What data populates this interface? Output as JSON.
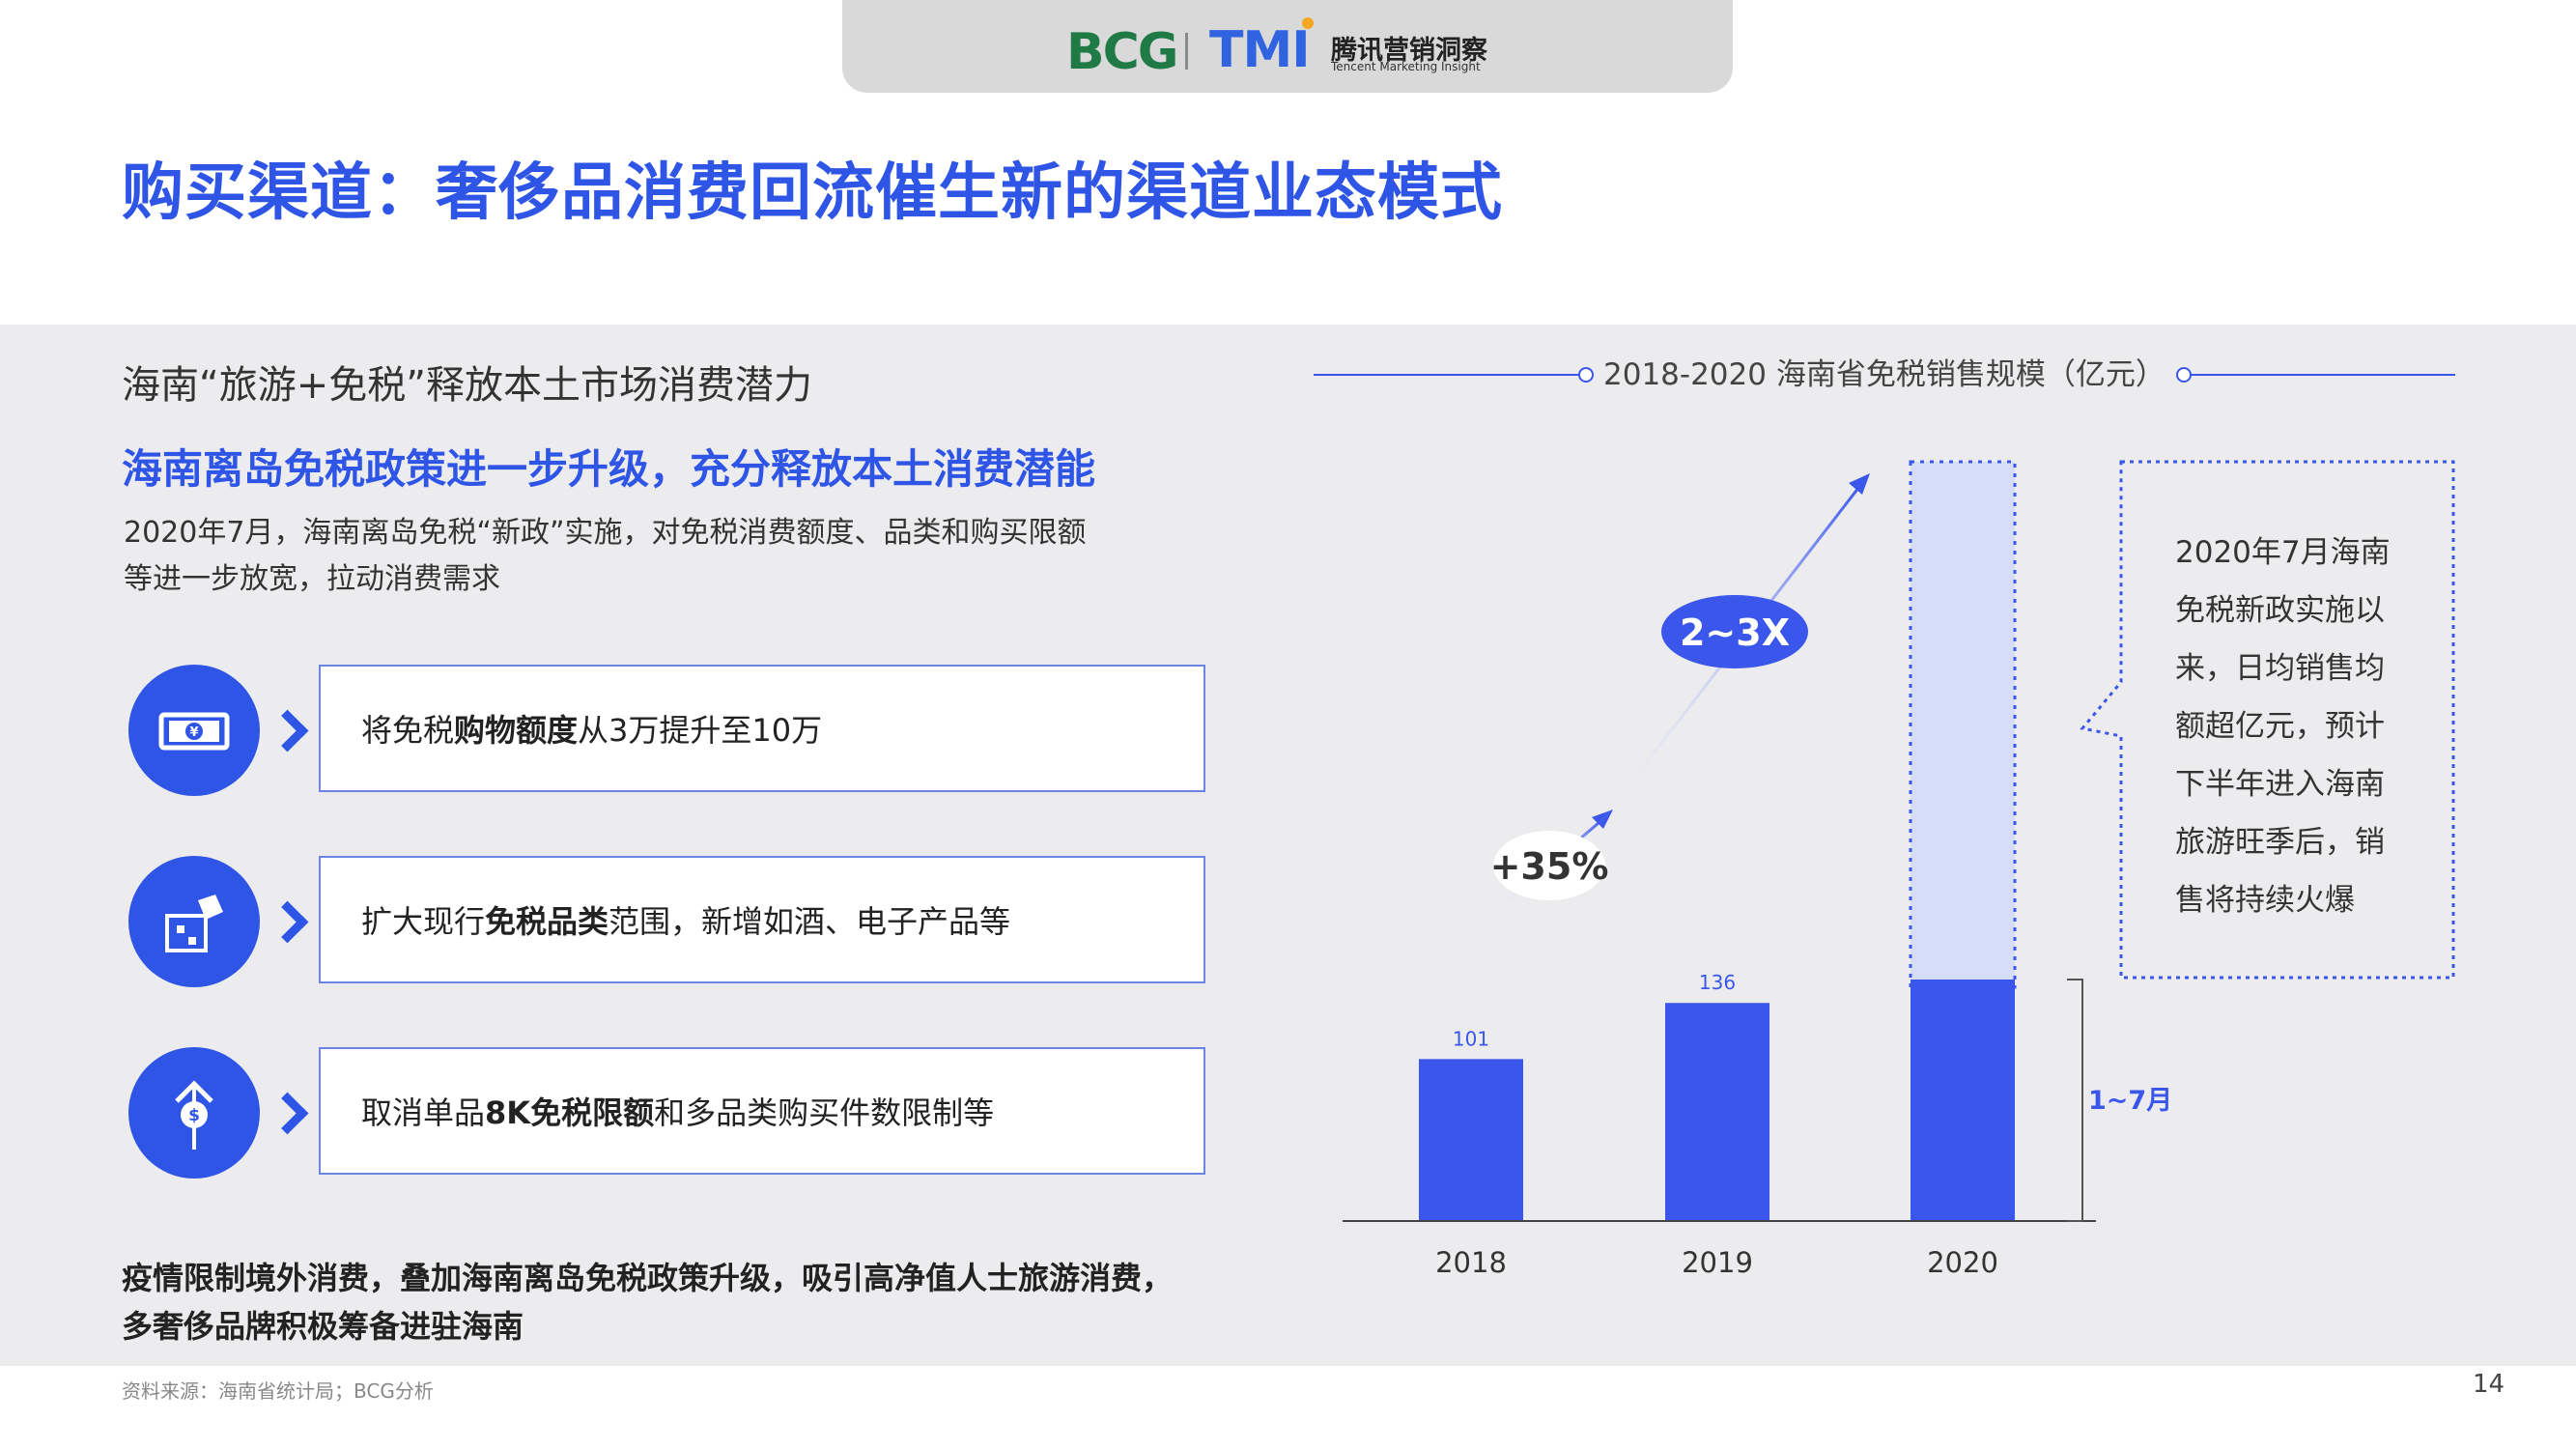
{
  "header": {
    "bcg_logo": "BCG",
    "tmi_logo": "TMI",
    "tmi_cn": "腾讯营销洞察",
    "tmi_en": "Tencent Marketing Insight"
  },
  "title": "购买渠道：奢侈品消费回流催生新的渠道业态模式",
  "left": {
    "section_heading": "海南“旅游+免税”释放本土市场消费潜力",
    "policy_title": "海南离岛免税政策进一步升级，充分释放本土消费潜能",
    "policy_desc_1": "2020年7月，海南离岛免税“新政”实施，对免税消费额度、品类和购买限额",
    "policy_desc_2": "等进一步放宽，拉动消费需求",
    "items": [
      {
        "icon": "money-icon",
        "pre": "将免税",
        "bold": "购物额度",
        "post": "从3万提升至10万"
      },
      {
        "icon": "puzzle-icon",
        "pre": "扩大现行",
        "bold": "免税品类",
        "post": "范围，新增如酒、电子产品等"
      },
      {
        "icon": "dollar-up-icon",
        "pre": "取消单品",
        "bold": "8K免税限额",
        "post": "和多品类购买件数限制等"
      }
    ],
    "conclusion_1": "疫情限制境外消费，叠加海南离岛免税政策升级，吸引高净值人士旅游消费，",
    "conclusion_2": "多奢侈品牌积极筹备进驻海南"
  },
  "chart_data": {
    "type": "bar",
    "title": "2018-2020 海南省免税销售规模（亿元）",
    "categories": [
      "2018",
      "2019",
      "2020"
    ],
    "values": [
      101,
      136,
      null
    ],
    "value_labels": [
      "101",
      "136",
      ""
    ],
    "bracket_label": "1~7月",
    "growth_labels": [
      "+35%",
      "2~3X"
    ],
    "callout": [
      "2020年7月海南",
      "免税新政实施以",
      "来，日均销售均",
      "额超亿元，预计",
      "下半年进入海南",
      "旅游旺季后，销",
      "售将持续火爆"
    ],
    "colors": {
      "bar": "#3a56eb",
      "projected": "#d6ddf7"
    }
  },
  "footer": {
    "source": "资料来源：海南省统计局；BCG分析",
    "page_number": "14"
  }
}
